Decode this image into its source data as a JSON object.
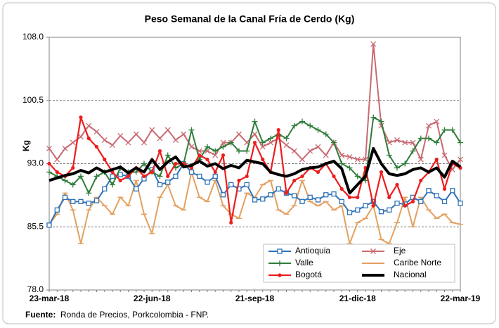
{
  "chart_data": {
    "type": "line",
    "title": "Peso Semanal de la Canal Fría de Cerdo (Kg)",
    "y_label": "Kg",
    "source_label": "Fuente:",
    "source_text": "Ronda de Precios, Porkcolombia  - FNP.",
    "categories": [
      "23-mar-18",
      null,
      null,
      null,
      null,
      null,
      null,
      null,
      null,
      null,
      null,
      null,
      null,
      "22-jun-18",
      null,
      null,
      null,
      null,
      null,
      null,
      null,
      null,
      null,
      null,
      null,
      null,
      "21-sep-18",
      null,
      null,
      null,
      null,
      null,
      null,
      null,
      null,
      null,
      null,
      null,
      null,
      "21-dic-18",
      null,
      null,
      null,
      null,
      null,
      null,
      null,
      null,
      null,
      null,
      null,
      null,
      "22-mar-19"
    ],
    "ylim": [
      78,
      108
    ],
    "yticks": [
      {
        "value": 78,
        "label": "78.0"
      },
      85.5,
      {
        "value": 93,
        "label": "93.0"
      },
      100.5,
      {
        "value": 108,
        "label": "108.0"
      }
    ],
    "grid": true,
    "series": [
      {
        "name": "Caribe Norte",
        "color": "#e3a060",
        "marker": "dash",
        "width": 2,
        "values": [
          85.8,
          87,
          89.5,
          87.5,
          83.5,
          87.5,
          89,
          88,
          87,
          89,
          88,
          91,
          87,
          84.7,
          89,
          90.5,
          88,
          87.5,
          92,
          89,
          88.5,
          91,
          88,
          87,
          86.5,
          89.5,
          89,
          90.5,
          91,
          87.5,
          87,
          88,
          91,
          88.5,
          88,
          88.5,
          87.5,
          88,
          83.5,
          86,
          86.5,
          88,
          84,
          83.5,
          86,
          89,
          85.5,
          89,
          87.5,
          86.5,
          87,
          86,
          85.8
        ]
      },
      {
        "name": "Antioquia",
        "color": "#2f73b8",
        "marker": "square",
        "width": 2,
        "values": [
          85.7,
          87.5,
          89,
          88.5,
          88.5,
          88.3,
          88.6,
          90,
          91.5,
          91.7,
          91.5,
          90,
          91.2,
          92.3,
          90.5,
          90.8,
          91.5,
          93,
          92,
          91.5,
          90.8,
          91.5,
          89.3,
          90.5,
          90,
          90.5,
          88.7,
          88.8,
          89.3,
          90,
          89.5,
          89.2,
          88.5,
          89,
          88.7,
          89.3,
          89.4,
          88.5,
          87.2,
          87.5,
          88,
          88.5,
          87.3,
          87.5,
          88.3,
          88.2,
          89,
          88.5,
          89.8,
          89.2,
          88.5,
          89.8,
          88.3
        ]
      },
      {
        "name": "Eje",
        "color": "#c96a72",
        "marker": "cross",
        "width": 2,
        "values": [
          94.8,
          93.5,
          94.8,
          95.5,
          96.2,
          97.5,
          96.8,
          95.8,
          95.2,
          96.3,
          95.5,
          96.5,
          95.5,
          97,
          96,
          97,
          95.8,
          96.5,
          95,
          94.5,
          94.5,
          94,
          95.5,
          95.5,
          96.5,
          95.5,
          96.5,
          95,
          95.5,
          96,
          95.2,
          94.5,
          93.5,
          94.5,
          95,
          94,
          95.5,
          94,
          93.8,
          93.5,
          93.5,
          107.2,
          97.5,
          95.5,
          95.8,
          95.5,
          95.5,
          93.5,
          97.5,
          98,
          94,
          92.3,
          93.5
        ]
      },
      {
        "name": "Valle",
        "color": "#2e7d3a",
        "marker": "plus",
        "width": 2,
        "values": [
          92,
          91.5,
          91,
          90.5,
          91.5,
          89.5,
          91.5,
          92,
          90.5,
          92.5,
          92,
          92,
          93,
          92,
          91.5,
          94,
          92.5,
          93,
          97,
          93.5,
          95,
          94.5,
          95,
          95.5,
          94.5,
          94.5,
          98,
          95.5,
          96,
          96.5,
          96,
          97.5,
          98,
          97.5,
          97,
          96.5,
          95.5,
          93,
          92.5,
          91.5,
          91,
          98.5,
          98,
          94,
          92.5,
          93,
          94.5,
          96,
          96,
          95.5,
          97,
          97,
          95.5
        ]
      },
      {
        "name": "Bogotá",
        "color": "#ee1c1c",
        "marker": "dot",
        "width": 2.2,
        "values": [
          93,
          92,
          91.5,
          92.5,
          98.5,
          96,
          95,
          93.5,
          92,
          91,
          91.5,
          92.5,
          91.5,
          92,
          94.5,
          91.5,
          93,
          93,
          92.5,
          94,
          93.5,
          92,
          94,
          86,
          91,
          91.5,
          95.5,
          93.5,
          92,
          97,
          89.5,
          91,
          91.5,
          92.5,
          92,
          93,
          91.5,
          90,
          89,
          89,
          92.5,
          88,
          92,
          89,
          90.5,
          88,
          88.5,
          91,
          92,
          93.5,
          90,
          93,
          92.5
        ]
      },
      {
        "name": "Nacional",
        "color": "#000000",
        "marker": "none",
        "width": 4,
        "values": [
          91,
          91.3,
          91.6,
          91.8,
          92.2,
          91.9,
          92.5,
          92,
          92.3,
          92.6,
          91.9,
          92.5,
          92,
          93.5,
          92.3,
          93.2,
          93.8,
          92.6,
          92.8,
          93.3,
          92.7,
          93,
          92.4,
          92.8,
          92.5,
          93.4,
          93.2,
          93,
          92,
          91.7,
          91.5,
          91.8,
          92.3,
          92.5,
          92.6,
          93,
          93.3,
          92.4,
          89.5,
          90.5,
          91.5,
          94.8,
          93,
          91.8,
          91.6,
          91.8,
          92.3,
          92.5,
          92,
          92.5,
          91.4,
          93.3,
          92.6
        ]
      }
    ],
    "legend_order": [
      1,
      2,
      3,
      0,
      4,
      5
    ]
  }
}
